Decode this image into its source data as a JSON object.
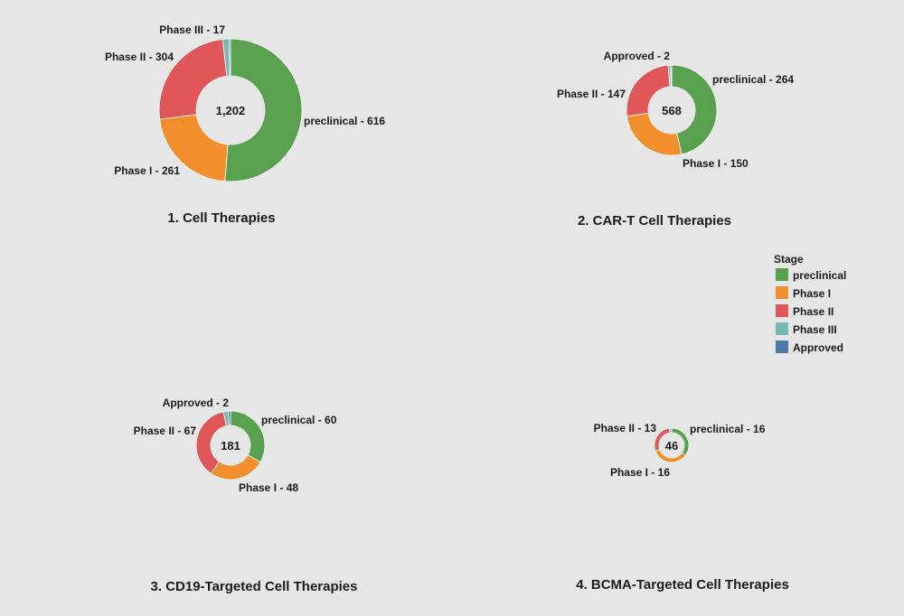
{
  "legend": {
    "title": "Stage",
    "items": [
      {
        "label": "preclinical",
        "color": "#59a14f"
      },
      {
        "label": "Phase I",
        "color": "#f28e2b"
      },
      {
        "label": "Phase II",
        "color": "#e15759"
      },
      {
        "label": "Phase III",
        "color": "#76b7b2"
      },
      {
        "label": "Approved",
        "color": "#4e79a7"
      }
    ]
  },
  "chart_data": [
    {
      "type": "pie",
      "title": "1. Cell Therapies",
      "total_label": "1,202",
      "slices": [
        {
          "stage": "preclinical",
          "value": 616,
          "label": "preclinical - 616"
        },
        {
          "stage": "Phase I",
          "value": 261,
          "label": "Phase I - 261"
        },
        {
          "stage": "Phase II",
          "value": 304,
          "label": "Phase II - 304"
        },
        {
          "stage": "Phase III",
          "value": 17,
          "label": "Phase III - 17"
        },
        {
          "stage": "Approved",
          "value": 4,
          "label": ""
        }
      ]
    },
    {
      "type": "pie",
      "title": "2. CAR-T Cell Therapies",
      "total_label": "568",
      "slices": [
        {
          "stage": "preclinical",
          "value": 264,
          "label": "preclinical - 264"
        },
        {
          "stage": "Phase I",
          "value": 150,
          "label": "Phase I - 150"
        },
        {
          "stage": "Phase II",
          "value": 147,
          "label": "Phase II - 147"
        },
        {
          "stage": "Phase III",
          "value": 5,
          "label": ""
        },
        {
          "stage": "Approved",
          "value": 2,
          "label": "Approved - 2"
        }
      ]
    },
    {
      "type": "pie",
      "title": "3. CD19-Targeted Cell Therapies",
      "total_label": "181",
      "slices": [
        {
          "stage": "preclinical",
          "value": 60,
          "label": "preclinical - 60"
        },
        {
          "stage": "Phase I",
          "value": 48,
          "label": "Phase I - 48"
        },
        {
          "stage": "Phase II",
          "value": 67,
          "label": "Phase II - 67"
        },
        {
          "stage": "Phase III",
          "value": 4,
          "label": ""
        },
        {
          "stage": "Approved",
          "value": 2,
          "label": "Approved - 2"
        }
      ]
    },
    {
      "type": "pie",
      "title": "4. BCMA-Targeted Cell Therapies",
      "total_label": "46",
      "slices": [
        {
          "stage": "preclinical",
          "value": 16,
          "label": "preclinical - 16"
        },
        {
          "stage": "Phase I",
          "value": 16,
          "label": "Phase I - 16"
        },
        {
          "stage": "Phase II",
          "value": 13,
          "label": "Phase II - 13"
        },
        {
          "stage": "Phase III",
          "value": 1,
          "label": ""
        }
      ]
    }
  ]
}
